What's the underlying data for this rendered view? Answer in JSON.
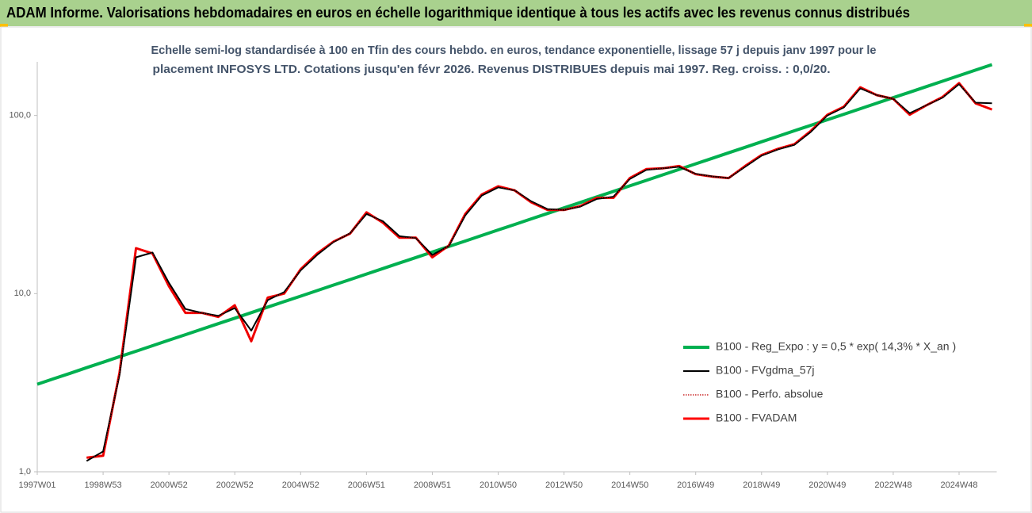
{
  "chart_data": {
    "type": "line",
    "title": "ADAM Informe. Valorisations hebdomadaires en euros en échelle logarithmique identique à tous les actifs avec les revenus connus distribués",
    "subtitle": [
      "Echelle semi-log standardisée à 100 en Tfin des cours hebdo. en euros, tendance exponentielle, lissage 57 j depuis janv 1997 pour le",
      "placement INFOSYS LTD. Cotations jusqu'en févr 2026. Revenus DISTRIBUES depuis mai 1997. Reg. croiss. : 0,0/20."
    ],
    "categories": [
      "1997W01",
      null,
      null,
      null,
      "1998W53",
      null,
      null,
      null,
      "2000W52",
      null,
      null,
      null,
      "2002W52",
      null,
      null,
      null,
      "2004W52",
      null,
      null,
      null,
      "2006W51",
      null,
      null,
      null,
      "2008W51",
      null,
      null,
      null,
      "2010W50",
      null,
      null,
      null,
      "2012W50",
      null,
      null,
      null,
      "2014W50",
      null,
      null,
      null,
      "2016W49",
      null,
      null,
      null,
      "2018W49",
      null,
      null,
      null,
      "2020W49",
      null,
      null,
      null,
      "2022W48",
      null,
      null,
      null,
      "2024W48",
      null,
      null
    ],
    "log_scale": true,
    "ylim": [
      1,
      200
    ],
    "yticks": [
      {
        "value": 1,
        "label": "1,0"
      },
      {
        "value": 10,
        "label": "10,0"
      },
      {
        "value": 100,
        "label": "100,0"
      }
    ],
    "series": [
      {
        "name": "B100 - Reg_Expo : y = 0,5 * exp( 14,3% *  X_an )",
        "color": "#00b050",
        "style": "solid",
        "values": [
          3.1,
          3.33,
          3.57,
          3.84,
          4.12,
          4.43,
          4.75,
          5.1,
          5.48,
          5.88,
          6.32,
          6.78,
          7.28,
          7.82,
          8.4,
          9.02,
          9.68,
          10.4,
          11.17,
          11.99,
          12.88,
          13.83,
          14.85,
          15.95,
          17.12,
          18.39,
          19.74,
          21.2,
          22.77,
          24.45,
          26.25,
          28.19,
          30.27,
          32.51,
          34.91,
          37.49,
          40.25,
          43.23,
          46.42,
          49.85,
          53.53,
          57.48,
          61.72,
          66.28,
          71.17,
          76.43,
          82.07,
          88.13,
          94.64,
          101.6,
          109.1,
          117.2,
          125.8,
          135.1,
          145.1,
          155.8,
          167.3,
          179.7,
          192.9
        ]
      },
      {
        "name": "B100 - FVgdma_57j",
        "color": "#000000",
        "style": "solid",
        "values": [
          null,
          null,
          null,
          1.15,
          1.3,
          3.5,
          16,
          17,
          11.5,
          8.2,
          7.8,
          7.5,
          8.3,
          6.2,
          9.2,
          10.2,
          13.5,
          16.5,
          19.5,
          21.8,
          28,
          25.5,
          21,
          20.5,
          16.5,
          18.5,
          27.5,
          35.5,
          39.5,
          38,
          33,
          29.8,
          29.5,
          30.8,
          34,
          35,
          44,
          49.5,
          50.5,
          51.5,
          47,
          45.5,
          44.5,
          51.5,
          59.5,
          64.5,
          68.5,
          81,
          100,
          111,
          142,
          130,
          124,
          103,
          114,
          126,
          150,
          118,
          117
        ]
      },
      {
        "name": "B100 - Perfo. absolue",
        "color": "#c00000",
        "style": "dotted",
        "values": [
          null,
          null,
          null,
          1.2,
          1.23,
          3.6,
          18,
          16.8,
          11,
          7.8,
          7.8,
          7.4,
          8.6,
          5.4,
          9.5,
          10,
          13.7,
          16.8,
          19.6,
          21.7,
          28.6,
          25,
          20.6,
          20.6,
          16,
          18.6,
          28,
          36,
          40,
          38,
          32.6,
          29.5,
          29.5,
          31,
          34.5,
          34.5,
          44.5,
          50,
          50.5,
          52,
          46.8,
          45.4,
          44.5,
          52,
          60,
          65,
          69,
          82,
          101,
          112,
          144,
          130,
          124,
          101,
          114,
          127,
          152,
          117,
          108
        ]
      },
      {
        "name": "B100 - FVADAM",
        "color": "#ff0000",
        "style": "thick",
        "values": [
          null,
          null,
          null,
          1.2,
          1.23,
          3.6,
          18,
          16.8,
          11,
          7.8,
          7.8,
          7.4,
          8.6,
          5.4,
          9.5,
          10,
          13.7,
          16.8,
          19.6,
          21.7,
          28.6,
          25,
          20.6,
          20.6,
          16,
          18.6,
          28,
          36,
          40,
          38,
          32.6,
          29.5,
          29.5,
          31,
          34.5,
          34.5,
          44.5,
          50,
          50.5,
          52,
          46.8,
          45.4,
          44.5,
          52,
          60,
          65,
          69,
          82,
          101,
          112,
          144,
          130,
          124,
          101,
          114,
          127,
          152,
          117,
          108
        ]
      }
    ]
  }
}
